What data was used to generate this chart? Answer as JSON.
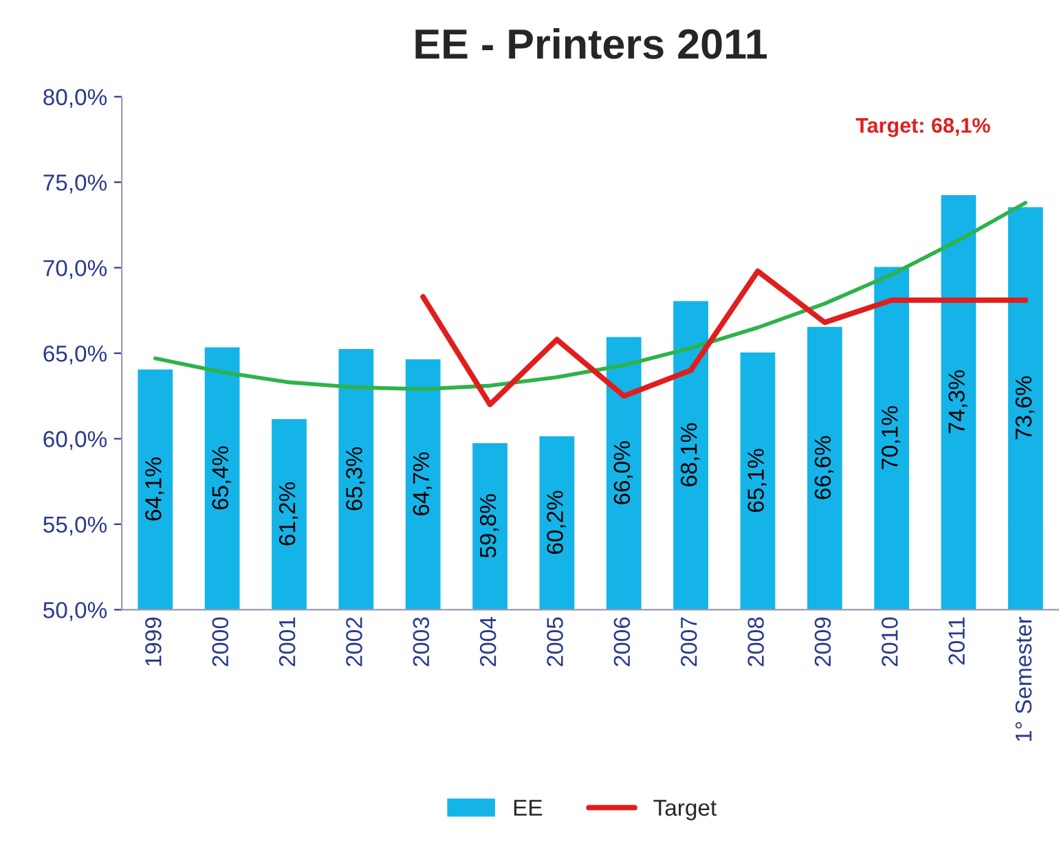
{
  "chart_data": {
    "type": "bar",
    "title": "EE - Printers 2011",
    "categories": [
      "1999",
      "2000",
      "2001",
      "2002",
      "2003",
      "2004",
      "2005",
      "2006",
      "2007",
      "2008",
      "2009",
      "2010",
      "2011",
      "1° Semester"
    ],
    "series": [
      {
        "name": "EE",
        "color": "#14b4e8",
        "values": [
          64.1,
          65.4,
          61.2,
          65.3,
          64.7,
          59.8,
          60.2,
          66.0,
          68.1,
          65.1,
          66.6,
          70.1,
          74.3,
          73.6
        ],
        "value_labels": [
          "64,1%",
          "65,4%",
          "61,2%",
          "65,3%",
          "64,7%",
          "59,8%",
          "60,2%",
          "66,0%",
          "68,1%",
          "65,1%",
          "66,6%",
          "70,1%",
          "74,3%",
          "73,6%"
        ]
      },
      {
        "name": "Target",
        "type": "line",
        "color": "#e01e1e",
        "values": [
          null,
          null,
          null,
          null,
          68.3,
          62.0,
          65.8,
          62.5,
          64.0,
          69.8,
          66.8,
          68.1,
          68.1,
          68.1
        ]
      },
      {
        "type": "line",
        "color": "#2eb34a",
        "values": [
          64.7,
          63.9,
          63.3,
          63.0,
          62.9,
          63.1,
          63.6,
          64.3,
          65.3,
          66.5,
          67.9,
          69.6,
          71.6,
          73.8
        ]
      }
    ],
    "ylim": [
      50,
      80
    ],
    "yticks": [
      {
        "value": 50,
        "label": "50,0%"
      },
      {
        "value": 55,
        "label": "55,0%"
      },
      {
        "value": 60,
        "label": "60,0%"
      },
      {
        "value": 65,
        "label": "65,0%"
      },
      {
        "value": 70,
        "label": "70,0%"
      },
      {
        "value": 75,
        "label": "75,0%"
      },
      {
        "value": 80,
        "label": "80,0%"
      }
    ],
    "annotations": [
      "Target: 68,1%"
    ],
    "grid": false,
    "legend": "bottom"
  }
}
